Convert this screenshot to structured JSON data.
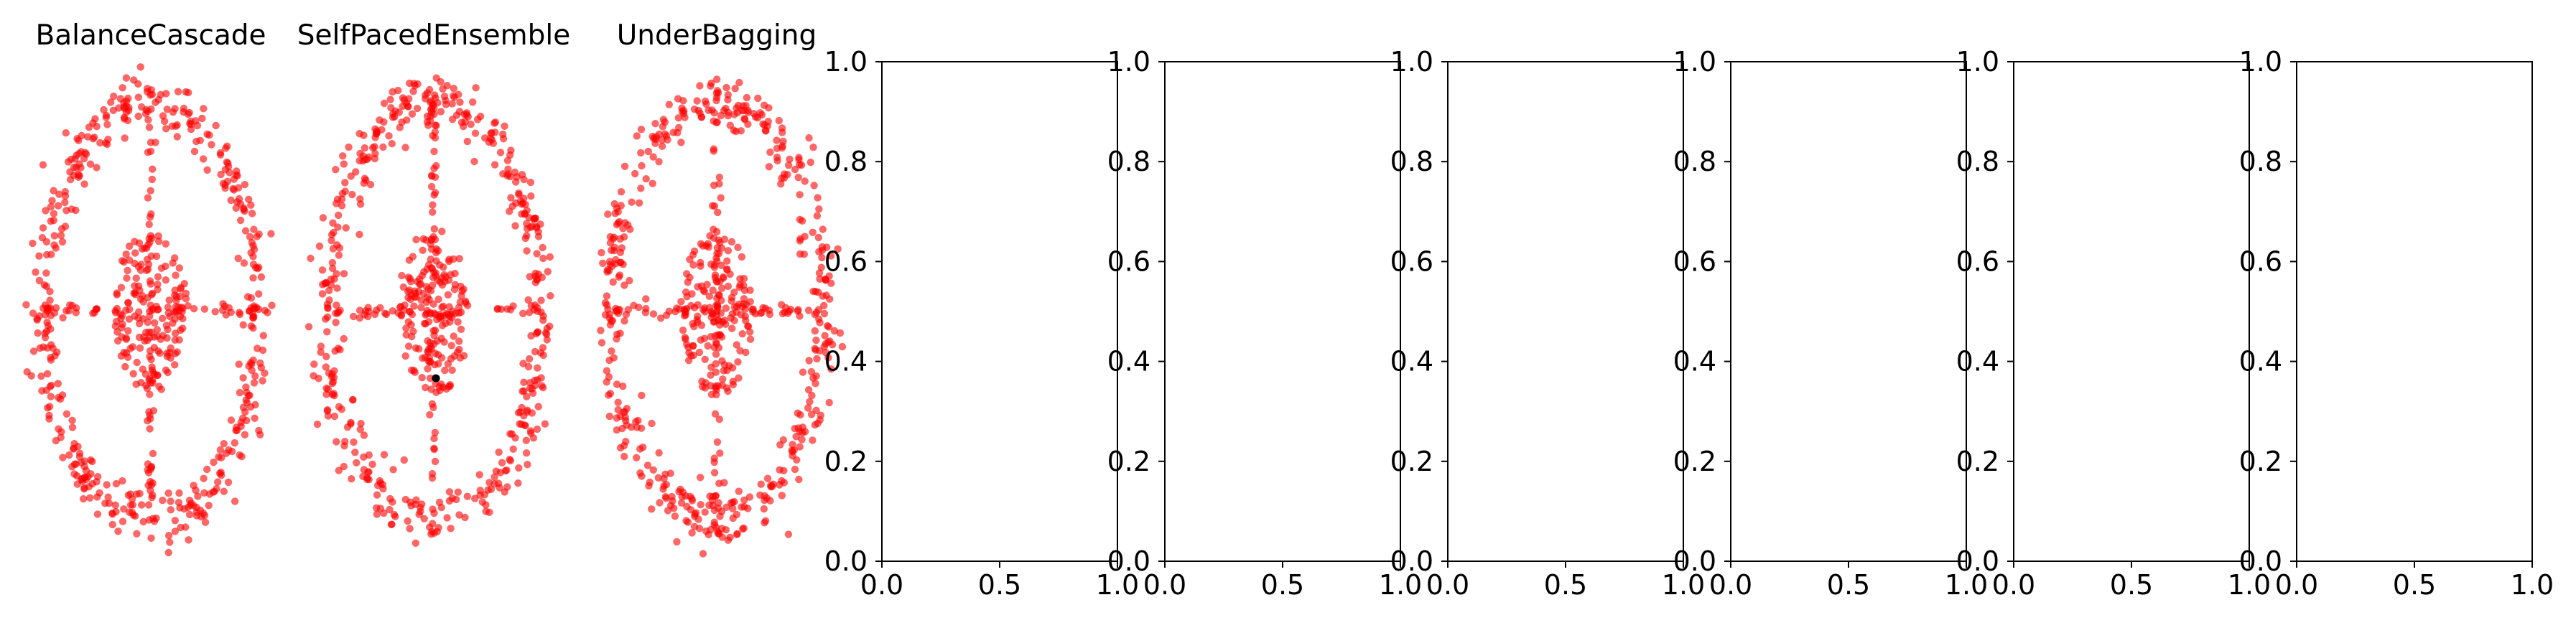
{
  "figure": {
    "background": "#ffffff",
    "axis_color": "#000000",
    "point_color": "#ff0000",
    "point_opacity": 0.6,
    "highlight_color": "#000000"
  },
  "chart_data": [
    {
      "type": "scatter",
      "title": "BalanceCascade",
      "axis_visible": false,
      "xlim": [
        -1.05,
        1.05
      ],
      "ylim": [
        -1.42,
        1.42
      ],
      "distribution": {
        "outer_ellipse": {
          "center": [
            0,
            0
          ],
          "rx": 0.95,
          "ry": 1.18
        },
        "inner_ellipse": {
          "center": [
            0,
            0
          ],
          "rx": 0.32,
          "ry": 0.48
        },
        "horizontal_band": {
          "x_range": [
            -1.0,
            1.0
          ],
          "y": 0.0
        },
        "vertical_band": {
          "x": 0.0,
          "y_range": [
            -1.3,
            1.3
          ]
        }
      },
      "n_points_approx": 700,
      "highlighted_points": []
    },
    {
      "type": "scatter",
      "title": "SelfPacedEnsemble",
      "axis_visible": false,
      "xlim": [
        -1.05,
        1.05
      ],
      "ylim": [
        -1.42,
        1.42
      ],
      "distribution": {
        "outer_ellipse": {
          "center": [
            0,
            0
          ],
          "rx": 0.95,
          "ry": 1.18
        },
        "inner_ellipse": {
          "center": [
            0,
            0
          ],
          "rx": 0.32,
          "ry": 0.48
        },
        "horizontal_band": {
          "x_range": [
            -1.0,
            1.0
          ],
          "y": 0.0
        },
        "vertical_band": {
          "x": 0.0,
          "y_range": [
            -1.3,
            1.3
          ]
        }
      },
      "n_points_approx": 700,
      "highlighted_points": [
        [
          0.02,
          -0.38
        ]
      ]
    },
    {
      "type": "scatter",
      "title": "UnderBagging",
      "axis_visible": false,
      "xlim": [
        -1.05,
        1.05
      ],
      "ylim": [
        -1.42,
        1.42
      ],
      "distribution": {
        "outer_ellipse": {
          "center": [
            0,
            0
          ],
          "rx": 0.95,
          "ry": 1.18
        },
        "inner_ellipse": {
          "center": [
            0,
            0
          ],
          "rx": 0.32,
          "ry": 0.48
        },
        "horizontal_band": {
          "x_range": [
            -1.0,
            1.0
          ],
          "y": 0.0
        },
        "vertical_band": {
          "x": 0.0,
          "y_range": [
            -1.3,
            1.3
          ]
        }
      },
      "n_points_approx": 700,
      "highlighted_points": []
    },
    {
      "type": "scatter",
      "title": "",
      "axis_visible": true,
      "xlim": [
        0,
        1
      ],
      "ylim": [
        0,
        1
      ],
      "x_ticks": [
        0.0,
        0.5,
        1.0
      ],
      "y_ticks": [
        0.0,
        0.2,
        0.4,
        0.6,
        0.8,
        1.0
      ],
      "x_tick_labels": [
        "0.0",
        "0.5",
        "1.0"
      ],
      "y_tick_labels": [
        "0.0",
        "0.2",
        "0.4",
        "0.6",
        "0.8",
        "1.0"
      ],
      "series": []
    },
    {
      "type": "scatter",
      "title": "",
      "axis_visible": true,
      "xlim": [
        0,
        1
      ],
      "ylim": [
        0,
        1
      ],
      "x_ticks": [
        0.0,
        0.5,
        1.0
      ],
      "y_ticks": [
        0.0,
        0.2,
        0.4,
        0.6,
        0.8,
        1.0
      ],
      "x_tick_labels": [
        "0.0",
        "0.5",
        "1.0"
      ],
      "y_tick_labels": [
        "0.0",
        "0.2",
        "0.4",
        "0.6",
        "0.8",
        "1.0"
      ],
      "series": []
    },
    {
      "type": "scatter",
      "title": "",
      "axis_visible": true,
      "xlim": [
        0,
        1
      ],
      "ylim": [
        0,
        1
      ],
      "x_ticks": [
        0.0,
        0.5,
        1.0
      ],
      "y_ticks": [
        0.0,
        0.2,
        0.4,
        0.6,
        0.8,
        1.0
      ],
      "x_tick_labels": [
        "0.0",
        "0.5",
        "1.0"
      ],
      "y_tick_labels": [
        "0.0",
        "0.2",
        "0.4",
        "0.6",
        "0.8",
        "1.0"
      ],
      "series": []
    },
    {
      "type": "scatter",
      "title": "",
      "axis_visible": true,
      "xlim": [
        0,
        1
      ],
      "ylim": [
        0,
        1
      ],
      "x_ticks": [
        0.0,
        0.5,
        1.0
      ],
      "y_ticks": [
        0.0,
        0.2,
        0.4,
        0.6,
        0.8,
        1.0
      ],
      "x_tick_labels": [
        "0.0",
        "0.5",
        "1.0"
      ],
      "y_tick_labels": [
        "0.0",
        "0.2",
        "0.4",
        "0.6",
        "0.8",
        "1.0"
      ],
      "series": []
    },
    {
      "type": "scatter",
      "title": "",
      "axis_visible": true,
      "xlim": [
        0,
        1
      ],
      "ylim": [
        0,
        1
      ],
      "x_ticks": [
        0.0,
        0.5,
        1.0
      ],
      "y_ticks": [
        0.0,
        0.2,
        0.4,
        0.6,
        0.8,
        1.0
      ],
      "x_tick_labels": [
        "0.0",
        "0.5",
        "1.0"
      ],
      "y_tick_labels": [
        "0.0",
        "0.2",
        "0.4",
        "0.6",
        "0.8",
        "1.0"
      ],
      "series": []
    },
    {
      "type": "scatter",
      "title": "",
      "axis_visible": true,
      "xlim": [
        0,
        1
      ],
      "ylim": [
        0,
        1
      ],
      "x_ticks": [
        0.0,
        0.5,
        1.0
      ],
      "y_ticks": [
        0.0,
        0.2,
        0.4,
        0.6,
        0.8,
        1.0
      ],
      "x_tick_labels": [
        "0.0",
        "0.5",
        "1.0"
      ],
      "y_tick_labels": [
        "0.0",
        "0.2",
        "0.4",
        "0.6",
        "0.8",
        "1.0"
      ],
      "series": []
    }
  ]
}
